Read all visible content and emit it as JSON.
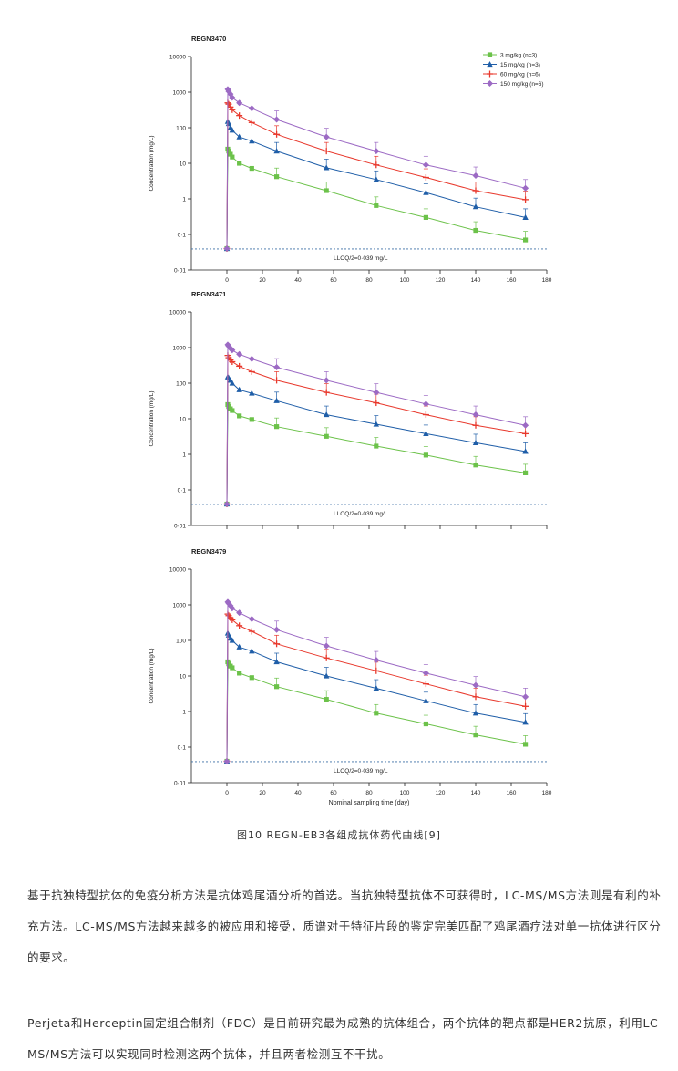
{
  "figure": {
    "caption": "图10 REGN-EB3各组成抗体药代曲线[9]",
    "legend": [
      {
        "label": "3 mg/kg (n=3)",
        "color": "#6cc24a",
        "marker": "square"
      },
      {
        "label": "15 mg/kg (n=3)",
        "color": "#1f5ea8",
        "marker": "triangle"
      },
      {
        "label": "60 mg/kg (n=6)",
        "color": "#e8382c",
        "marker": "plus"
      },
      {
        "label": "150 mg/kg (n=6)",
        "color": "#9c6ac4",
        "marker": "diamond"
      }
    ],
    "ylabel": "Concentration (mg/L)",
    "xlabel": "Nominal sampling time (day)",
    "lloq_label": "LLOQ/2=0·039 mg/L",
    "lloq": 0.039,
    "ylim": [
      0.01,
      10000
    ],
    "xlim": [
      -20,
      180
    ],
    "yticks": [
      "0·01",
      "0·1",
      "1",
      "10",
      "100",
      "1000",
      "10000"
    ],
    "xticks": [
      "0",
      "20",
      "40",
      "60",
      "80",
      "100",
      "120",
      "140",
      "160",
      "180"
    ]
  },
  "chart_data": [
    {
      "type": "line",
      "title": "REGN3470",
      "yscale": "log",
      "x": [
        0,
        0.5,
        1,
        2,
        3,
        7,
        14,
        28,
        56,
        84,
        112,
        140,
        168
      ],
      "series": [
        {
          "name": "3 mg/kg (n=3)",
          "values": [
            0.04,
            25,
            22,
            18,
            15,
            10,
            7.2,
            4.2,
            1.7,
            0.65,
            0.3,
            0.13,
            0.07
          ]
        },
        {
          "name": "15 mg/kg (n=3)",
          "values": [
            0.04,
            150,
            130,
            100,
            85,
            55,
            42,
            22,
            7.5,
            3.5,
            1.5,
            0.6,
            0.3
          ]
        },
        {
          "name": "60 mg/kg (n=6)",
          "values": [
            0.04,
            500,
            460,
            380,
            320,
            220,
            140,
            65,
            22,
            9,
            4,
            1.7,
            0.95
          ]
        },
        {
          "name": "150 mg/kg (n=6)",
          "values": [
            0.04,
            1200,
            1050,
            880,
            700,
            500,
            350,
            170,
            55,
            22,
            9,
            4.5,
            2
          ]
        }
      ]
    },
    {
      "type": "line",
      "title": "REGN3471",
      "yscale": "log",
      "x": [
        0,
        0.5,
        1,
        2,
        3,
        7,
        14,
        28,
        56,
        84,
        112,
        140,
        168
      ],
      "series": [
        {
          "name": "3 mg/kg (n=3)",
          "values": [
            0.04,
            25,
            22,
            19,
            17,
            12,
            9.5,
            6,
            3.2,
            1.7,
            0.95,
            0.5,
            0.3
          ]
        },
        {
          "name": "15 mg/kg (n=3)",
          "values": [
            0.04,
            150,
            140,
            120,
            100,
            65,
            52,
            32,
            13,
            7,
            3.8,
            2.1,
            1.2
          ]
        },
        {
          "name": "60 mg/kg (n=6)",
          "values": [
            0.04,
            600,
            520,
            450,
            400,
            300,
            210,
            120,
            55,
            28,
            13,
            6.5,
            3.8
          ]
        },
        {
          "name": "150 mg/kg (n=6)",
          "values": [
            0.04,
            1200,
            1100,
            950,
            850,
            650,
            480,
            280,
            120,
            55,
            26,
            13,
            6.5
          ]
        }
      ]
    },
    {
      "type": "line",
      "title": "REGN3479",
      "xlabel": "Nominal sampling time (day)",
      "yscale": "log",
      "x": [
        0,
        0.5,
        1,
        2,
        3,
        7,
        14,
        28,
        56,
        84,
        112,
        140,
        168
      ],
      "series": [
        {
          "name": "3 mg/kg (n=3)",
          "values": [
            0.04,
            25,
            22,
            19,
            17,
            12,
            9,
            5,
            2.2,
            0.9,
            0.45,
            0.22,
            0.12
          ]
        },
        {
          "name": "15 mg/kg (n=3)",
          "values": [
            0.04,
            160,
            140,
            115,
            100,
            65,
            50,
            25,
            10,
            4.5,
            2,
            0.9,
            0.5
          ]
        },
        {
          "name": "60 mg/kg (n=6)",
          "values": [
            0.04,
            550,
            500,
            430,
            380,
            260,
            180,
            80,
            32,
            14,
            6,
            2.6,
            1.4
          ]
        },
        {
          "name": "150 mg/kg (n=6)",
          "values": [
            0.04,
            1200,
            1100,
            950,
            800,
            600,
            400,
            200,
            70,
            28,
            12,
            5.5,
            2.6
          ]
        }
      ]
    }
  ],
  "text": {
    "para1": "基于抗独特型抗体的免疫分析方法是抗体鸡尾酒分析的首选。当抗独特型抗体不可获得时，LC-MS/MS方法则是有利的补充方法。LC-MS/MS方法越来越多的被应用和接受，质谱对于特征片段的鉴定完美匹配了鸡尾酒疗法对单一抗体进行区分的要求。",
    "para2": "Perjeta和Herceptin固定组合制剂（FDC）是目前研究最为成熟的抗体组合，两个抗体的靶点都是HER2抗原，利用LC-MS/MS方法可以实现同时检测这两个抗体，并且两者检测互不干扰。"
  }
}
